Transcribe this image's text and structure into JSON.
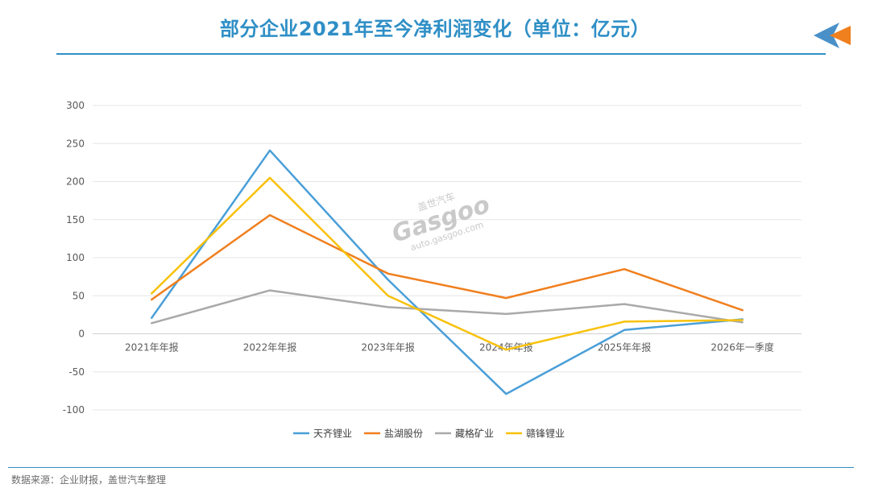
{
  "header": {
    "title": "部分企业2021年至今净利润变化（单位：亿元）"
  },
  "watermark": {
    "cn": "盖世汽车",
    "en": "Gasgoo",
    "url": "auto.gasgoo.com"
  },
  "footer": {
    "source": "数据来源：企业财报，盖世汽车整理"
  },
  "colors": {
    "accent": "#2f8fc6",
    "arrow_orange": "#f07f1e",
    "arrow_blue": "#4a90c8"
  },
  "chart_data": {
    "type": "line",
    "title": "",
    "xlabel": "",
    "ylabel": "",
    "categories": [
      "2021年年报",
      "2022年年报",
      "2023年年报",
      "2024年年报",
      "2025年年报",
      "2026年一季度"
    ],
    "ylim": [
      -100,
      300
    ],
    "yticks": [
      300,
      250,
      200,
      150,
      100,
      50,
      0,
      -50,
      -100
    ],
    "grid": true,
    "legend_position": "bottom",
    "series": [
      {
        "name": "天齐锂业",
        "color": "#4a9fd8",
        "values": [
          21,
          241,
          71,
          -79,
          5,
          19
        ]
      },
      {
        "name": "盐湖股份",
        "color": "#f07f1e",
        "values": [
          45,
          156,
          79,
          47,
          85,
          31
        ]
      },
      {
        "name": "藏格矿业",
        "color": "#a9a9a9",
        "values": [
          14,
          57,
          35,
          26,
          39,
          15
        ]
      },
      {
        "name": "赣锋锂业",
        "color": "#f8c10a",
        "values": [
          53,
          205,
          50,
          -21,
          16,
          18
        ]
      }
    ]
  }
}
